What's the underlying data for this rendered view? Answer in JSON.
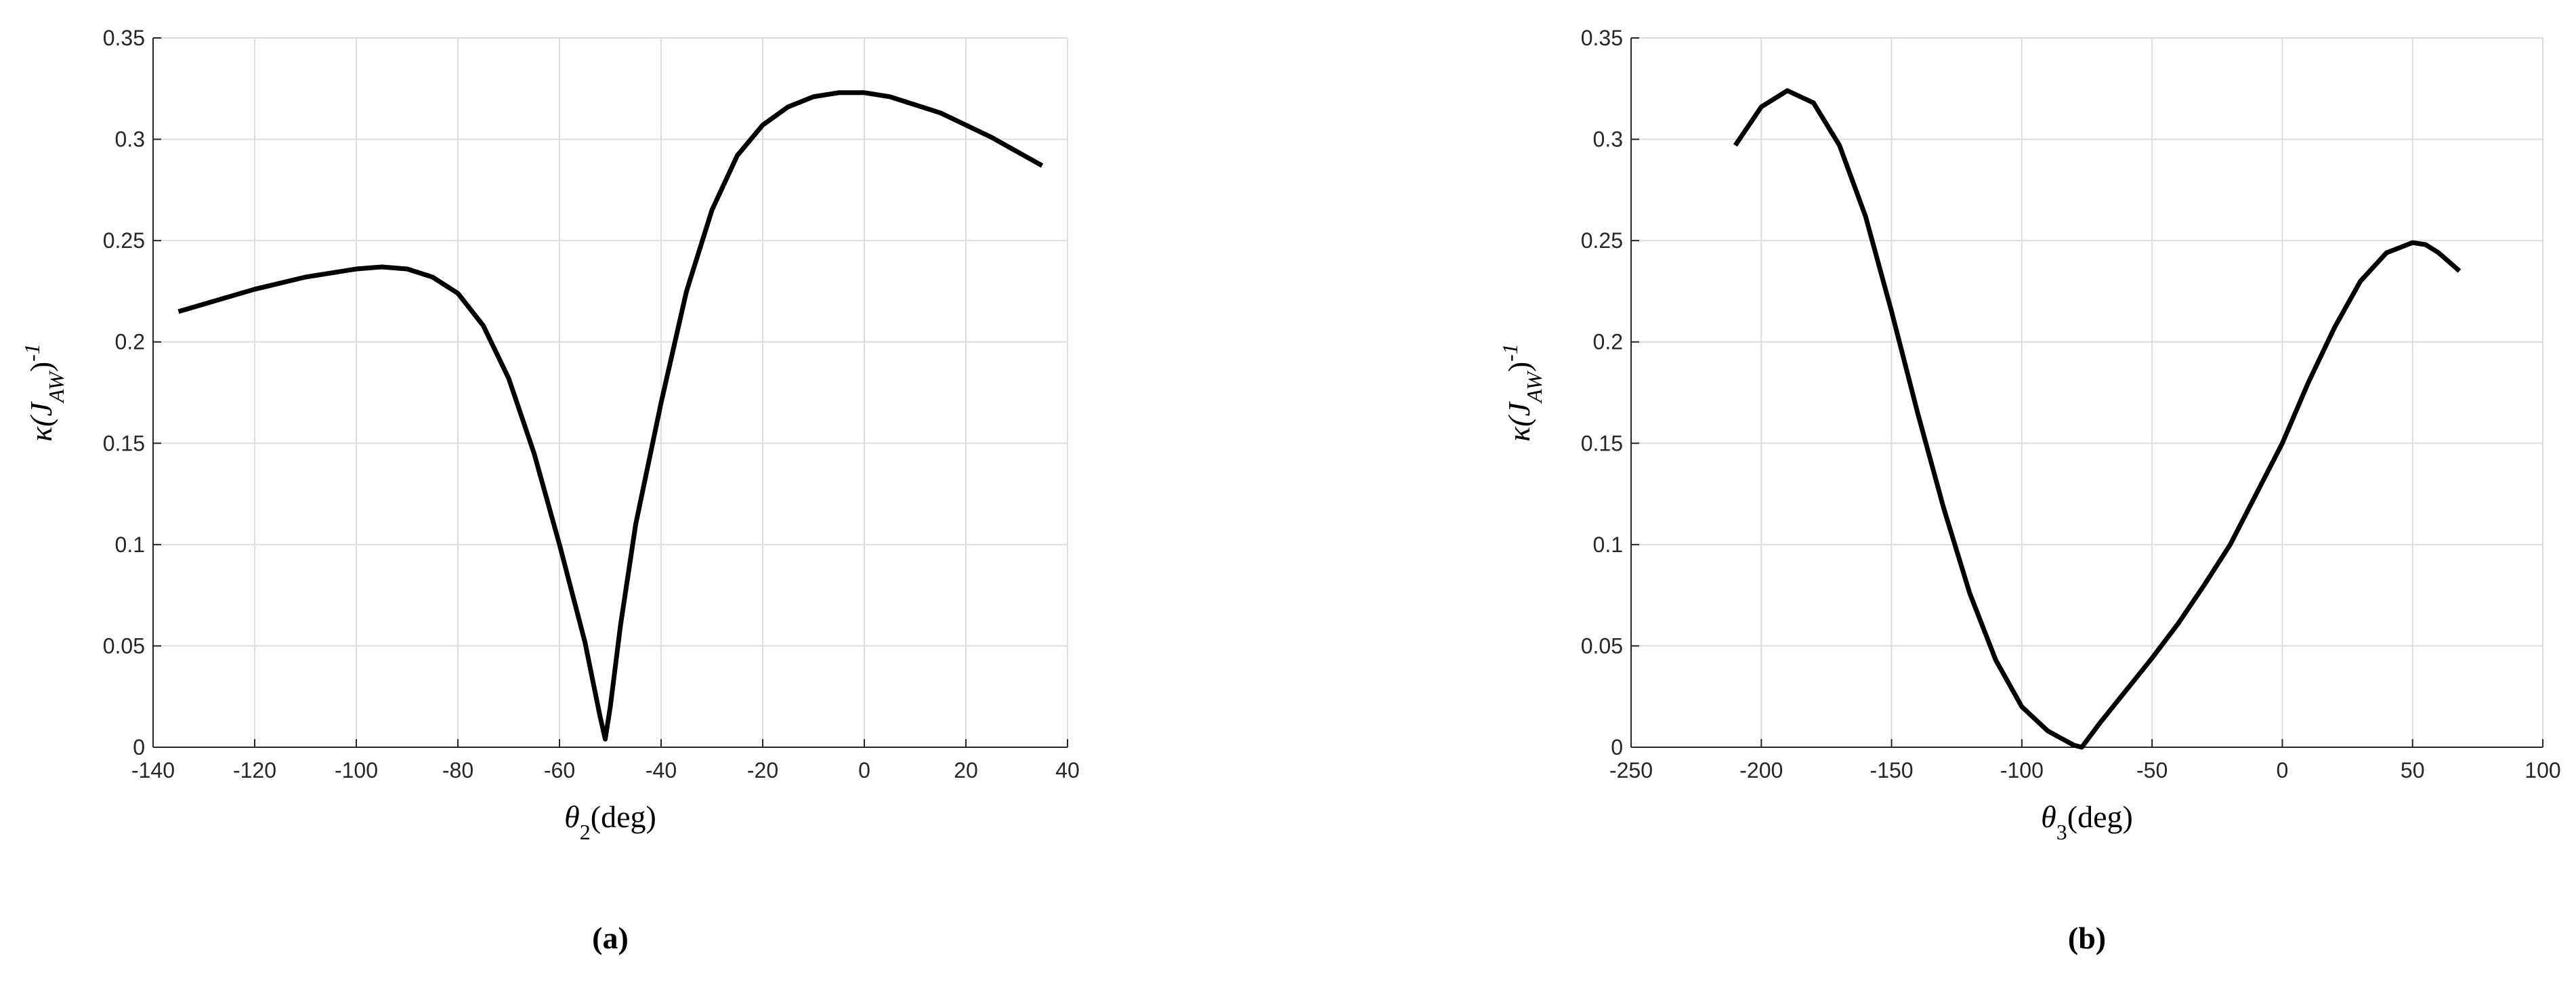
{
  "chart_data": [
    {
      "type": "line",
      "panel_label": "(a)",
      "xlabel": [
        "θ",
        "2",
        "(deg)"
      ],
      "ylabel": [
        "κ(J",
        "AW",
        ")",
        "-1"
      ],
      "x": [
        -135,
        -120,
        -110,
        -100,
        -95,
        -90,
        -85,
        -80,
        -75,
        -70,
        -65,
        -60,
        -55,
        -52,
        -51,
        -50,
        -48,
        -45,
        -40,
        -35,
        -30,
        -25,
        -20,
        -15,
        -10,
        -5,
        0,
        5,
        10,
        15,
        20,
        25,
        30,
        35
      ],
      "values": [
        0.215,
        0.226,
        0.232,
        0.236,
        0.237,
        0.236,
        0.232,
        0.224,
        0.208,
        0.182,
        0.145,
        0.1,
        0.052,
        0.015,
        0.004,
        0.02,
        0.06,
        0.11,
        0.17,
        0.225,
        0.265,
        0.292,
        0.307,
        0.316,
        0.321,
        0.323,
        0.323,
        0.321,
        0.317,
        0.313,
        0.307,
        0.301,
        0.294,
        0.287
      ],
      "color": "#000000",
      "xlim": [
        -140,
        40
      ],
      "xticks": [
        -140,
        -120,
        -100,
        -80,
        -60,
        -40,
        -20,
        0,
        20,
        40
      ],
      "ylim": [
        0,
        0.35
      ],
      "yticks": [
        0,
        0.05,
        0.1,
        0.15,
        0.2,
        0.25,
        0.3,
        0.35
      ],
      "grid": true
    },
    {
      "type": "line",
      "panel_label": "(b)",
      "xlabel": [
        "θ",
        "3",
        "(deg)"
      ],
      "ylabel": [
        "κ(J",
        "AW",
        ")",
        "-1"
      ],
      "x": [
        -210,
        -200,
        -190,
        -180,
        -170,
        -160,
        -150,
        -140,
        -130,
        -120,
        -110,
        -100,
        -90,
        -80,
        -77,
        -70,
        -60,
        -50,
        -40,
        -30,
        -20,
        -10,
        0,
        10,
        20,
        30,
        40,
        50,
        55,
        60,
        68
      ],
      "values": [
        0.297,
        0.316,
        0.324,
        0.318,
        0.297,
        0.262,
        0.215,
        0.165,
        0.118,
        0.076,
        0.043,
        0.02,
        0.008,
        0.001,
        0.0,
        0.012,
        0.028,
        0.044,
        0.061,
        0.08,
        0.1,
        0.125,
        0.15,
        0.18,
        0.207,
        0.23,
        0.244,
        0.249,
        0.248,
        0.244,
        0.235
      ],
      "color": "#000000",
      "xlim": [
        -250,
        100
      ],
      "xticks": [
        -250,
        -200,
        -150,
        -100,
        -50,
        0,
        50,
        100
      ],
      "ylim": [
        0,
        0.35
      ],
      "yticks": [
        0,
        0.05,
        0.1,
        0.15,
        0.2,
        0.25,
        0.3,
        0.35
      ],
      "grid": true
    }
  ]
}
